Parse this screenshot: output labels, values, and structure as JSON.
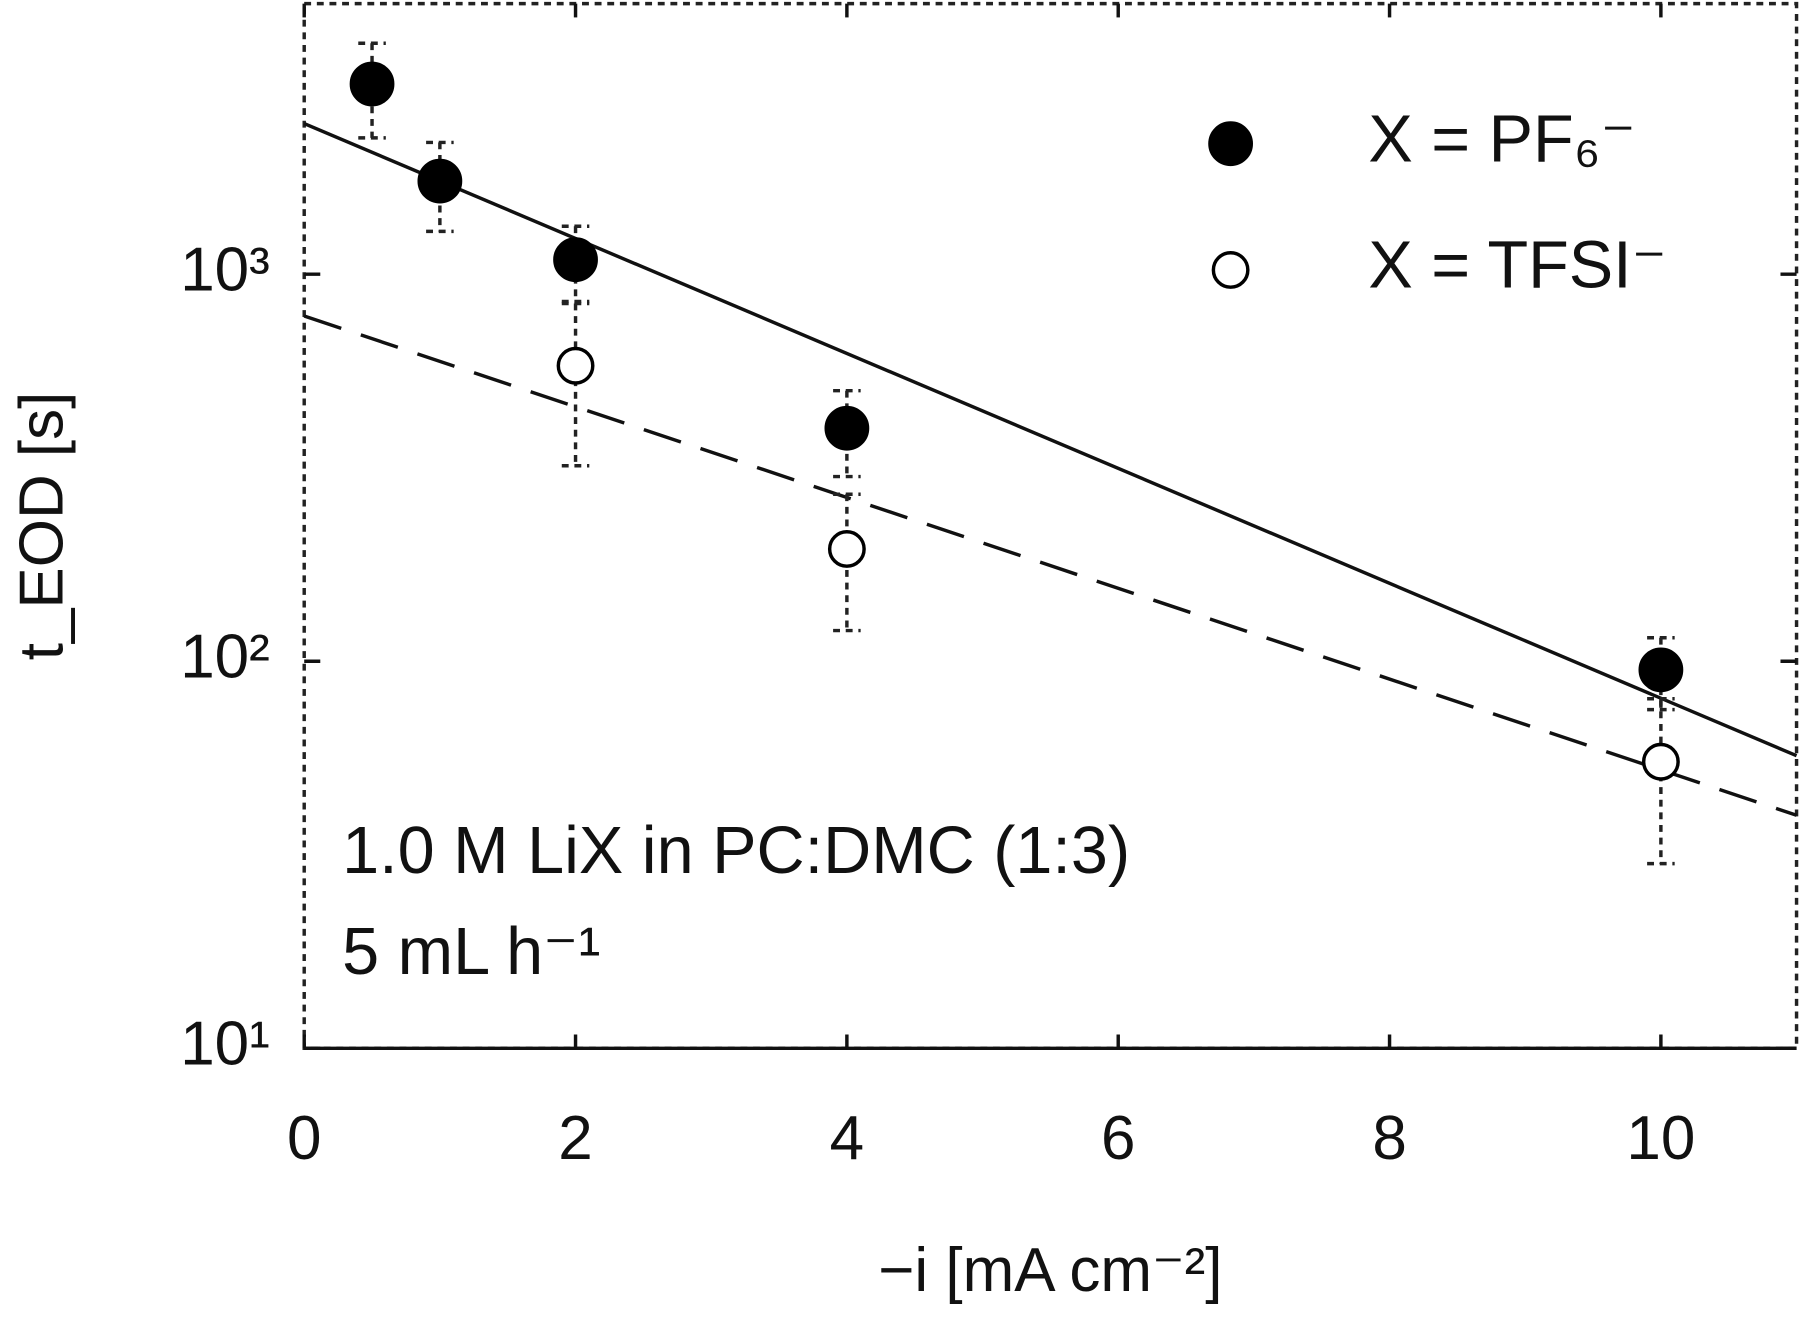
{
  "chart_data": {
    "type": "scatter",
    "xlabel": "−i [mA cm⁻²]",
    "ylabel": "t_EOD [s]",
    "xlim": [
      0,
      11
    ],
    "xticks": [
      0,
      2,
      4,
      6,
      8,
      10
    ],
    "ylim": [
      10,
      5000
    ],
    "ylog": true,
    "yticks": [
      {
        "value": 10,
        "label": "10¹"
      },
      {
        "value": 100,
        "label": "10²"
      },
      {
        "value": 1000,
        "label": "10³"
      }
    ],
    "legend": "upper right",
    "series": [
      {
        "name": "X = PF₆⁻",
        "color": "#000000",
        "filled": true,
        "x": [
          0.5,
          1,
          2,
          4,
          10
        ],
        "values": [
          3100,
          1740,
          1090,
          400,
          95
        ],
        "errors": [
          850,
          450,
          240,
          100,
          20
        ]
      },
      {
        "name": "X = TFSI⁻",
        "color": "#000000",
        "filled": false,
        "x": [
          2,
          4,
          10
        ],
        "values": [
          580,
          195,
          55
        ],
        "errors": [
          260,
          75,
          25
        ]
      }
    ],
    "fits": [
      {
        "x": [
          0,
          11
        ],
        "values": [
          2450,
          57
        ],
        "dashed": false
      },
      {
        "x": [
          0,
          11
        ],
        "values": [
          780,
          40
        ],
        "dashed": true
      }
    ],
    "annotations": [
      "1.0 M LiX in PC:DMC (1:3)",
      "5 mL h⁻¹"
    ]
  }
}
